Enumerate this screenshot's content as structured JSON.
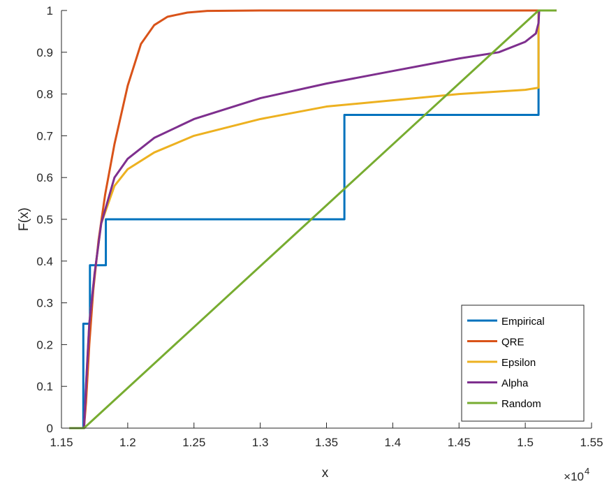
{
  "chart_data": {
    "type": "line",
    "xlabel": "x",
    "ylabel": "F(x)",
    "x_exponent_label": "×10",
    "x_exponent_power": "4",
    "xlim": [
      1.15,
      1.55
    ],
    "ylim": [
      0,
      1
    ],
    "xticks": [
      1.15,
      1.2,
      1.25,
      1.3,
      1.35,
      1.4,
      1.45,
      1.5,
      1.55
    ],
    "xtick_labels": [
      "1.15",
      "1.2",
      "1.25",
      "1.3",
      "1.35",
      "1.4",
      "1.45",
      "1.5",
      "1.55"
    ],
    "yticks": [
      0,
      0.1,
      0.2,
      0.3,
      0.4,
      0.5,
      0.6,
      0.7,
      0.8,
      0.9,
      1
    ],
    "ytick_labels": [
      "0",
      "0.1",
      "0.2",
      "0.3",
      "0.4",
      "0.5",
      "0.6",
      "0.7",
      "0.8",
      "0.9",
      "1"
    ],
    "grid": false,
    "legend_position": "bottom-right",
    "series": [
      {
        "name": "Empirical",
        "color": "#0072BD",
        "points": [
          [
            1.156,
            0
          ],
          [
            1.1665,
            0
          ],
          [
            1.1665,
            0.25
          ],
          [
            1.1715,
            0.25
          ],
          [
            1.1715,
            0.39
          ],
          [
            1.1835,
            0.39
          ],
          [
            1.1835,
            0.5
          ],
          [
            1.3635,
            0.5
          ],
          [
            1.3635,
            0.75
          ],
          [
            1.51,
            0.75
          ],
          [
            1.51,
            1
          ],
          [
            1.5235,
            1
          ]
        ]
      },
      {
        "name": "QRE",
        "color": "#D95319",
        "points": [
          [
            1.156,
            0
          ],
          [
            1.167,
            0
          ],
          [
            1.1685,
            0.06
          ],
          [
            1.171,
            0.2
          ],
          [
            1.174,
            0.33
          ],
          [
            1.178,
            0.45
          ],
          [
            1.183,
            0.56
          ],
          [
            1.19,
            0.68
          ],
          [
            1.2,
            0.82
          ],
          [
            1.21,
            0.92
          ],
          [
            1.22,
            0.965
          ],
          [
            1.23,
            0.985
          ],
          [
            1.245,
            0.995
          ],
          [
            1.26,
            0.999
          ],
          [
            1.3,
            1
          ],
          [
            1.4,
            1
          ],
          [
            1.5235,
            1
          ]
        ]
      },
      {
        "name": "Epsilon",
        "color": "#EDB120",
        "points": [
          [
            1.156,
            0
          ],
          [
            1.167,
            0
          ],
          [
            1.1685,
            0.1
          ],
          [
            1.171,
            0.25
          ],
          [
            1.175,
            0.37
          ],
          [
            1.18,
            0.49
          ],
          [
            1.19,
            0.58
          ],
          [
            1.2,
            0.62
          ],
          [
            1.22,
            0.66
          ],
          [
            1.25,
            0.7
          ],
          [
            1.3,
            0.74
          ],
          [
            1.35,
            0.77
          ],
          [
            1.4,
            0.785
          ],
          [
            1.45,
            0.8
          ],
          [
            1.5,
            0.81
          ],
          [
            1.51,
            0.815
          ],
          [
            1.51,
            1
          ],
          [
            1.5235,
            1
          ]
        ]
      },
      {
        "name": "Alpha",
        "color": "#7E2F8E",
        "points": [
          [
            1.156,
            0
          ],
          [
            1.167,
            0
          ],
          [
            1.1685,
            0.1
          ],
          [
            1.171,
            0.25
          ],
          [
            1.175,
            0.37
          ],
          [
            1.18,
            0.49
          ],
          [
            1.19,
            0.6
          ],
          [
            1.2,
            0.645
          ],
          [
            1.22,
            0.695
          ],
          [
            1.25,
            0.74
          ],
          [
            1.3,
            0.79
          ],
          [
            1.35,
            0.825
          ],
          [
            1.4,
            0.855
          ],
          [
            1.45,
            0.885
          ],
          [
            1.48,
            0.9
          ],
          [
            1.5,
            0.925
          ],
          [
            1.508,
            0.945
          ],
          [
            1.51,
            0.97
          ],
          [
            1.5105,
            1
          ],
          [
            1.5235,
            1
          ]
        ]
      },
      {
        "name": "Random",
        "color": "#77AC30",
        "points": [
          [
            1.156,
            0
          ],
          [
            1.167,
            0
          ],
          [
            1.51,
            1
          ],
          [
            1.5235,
            1
          ]
        ]
      }
    ]
  }
}
